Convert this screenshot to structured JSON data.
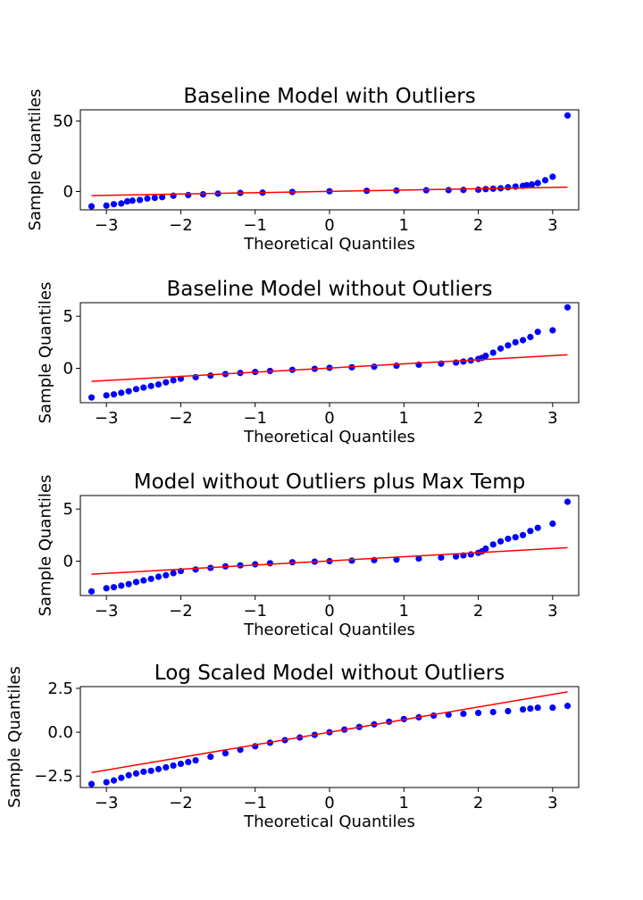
{
  "figure": {
    "xlabel": "Theoretical Quantiles",
    "ylabel": "Sample Quantiles"
  },
  "chart_data": [
    {
      "type": "scatter",
      "title": "Baseline Model with Outliers",
      "xlabel": "Theoretical Quantiles",
      "ylabel": "Sample Quantiles",
      "xlim": [
        -3.35,
        3.35
      ],
      "ylim": [
        -13,
        58
      ],
      "xticks": [
        -3,
        -2,
        -1,
        0,
        1,
        2,
        3
      ],
      "xtick_labels": [
        "−3",
        "−2",
        "−1",
        "0",
        "1",
        "2",
        "3"
      ],
      "yticks": [
        0,
        50
      ],
      "ytick_labels": [
        "0",
        "50"
      ],
      "grid": false,
      "marker_color": "#0000ff",
      "line_color": "#ff0000",
      "ref_line": {
        "x": [
          -3.2,
          3.2
        ],
        "y": [
          -2.9,
          3.1
        ]
      },
      "points": {
        "x": [
          -3.2,
          -3.0,
          -2.9,
          -2.8,
          -2.72,
          -2.65,
          -2.55,
          -2.45,
          -2.35,
          -2.25,
          -2.1,
          -1.9,
          -1.7,
          -1.5,
          -1.2,
          -0.9,
          -0.5,
          0,
          0.5,
          0.9,
          1.3,
          1.6,
          1.8,
          2.0,
          2.1,
          2.2,
          2.3,
          2.4,
          2.5,
          2.6,
          2.65,
          2.72,
          2.8,
          2.9,
          3.0,
          3.2
        ],
        "y": [
          -10.5,
          -10,
          -9,
          -8.5,
          -7,
          -6.5,
          -6,
          -5,
          -4.5,
          -4,
          -3,
          -2.5,
          -2,
          -1.5,
          -1,
          -0.8,
          -0.3,
          0.2,
          0.5,
          0.7,
          0.9,
          1.0,
          1.1,
          1.3,
          1.7,
          2,
          2.3,
          3,
          3.5,
          4,
          4.5,
          5,
          6,
          8,
          10.5,
          54
        ]
      }
    },
    {
      "type": "scatter",
      "title": "Baseline Model without Outliers",
      "xlabel": "Theoretical Quantiles",
      "ylabel": "Sample Quantiles",
      "xlim": [
        -3.35,
        3.35
      ],
      "ylim": [
        -3.3,
        6.3
      ],
      "xticks": [
        -3,
        -2,
        -1,
        0,
        1,
        2,
        3
      ],
      "xtick_labels": [
        "−3",
        "−2",
        "−1",
        "0",
        "1",
        "2",
        "3"
      ],
      "yticks": [
        0,
        5
      ],
      "ytick_labels": [
        "0",
        "5"
      ],
      "grid": false,
      "marker_color": "#0000ff",
      "line_color": "#ff0000",
      "ref_line": {
        "x": [
          -3.2,
          3.2
        ],
        "y": [
          -1.25,
          1.3
        ]
      },
      "points": {
        "x": [
          -3.2,
          -3.0,
          -2.9,
          -2.8,
          -2.7,
          -2.6,
          -2.5,
          -2.4,
          -2.3,
          -2.2,
          -2.1,
          -2.0,
          -1.8,
          -1.6,
          -1.4,
          -1.2,
          -1.0,
          -0.8,
          -0.5,
          -0.2,
          0,
          0.3,
          0.6,
          0.9,
          1.2,
          1.5,
          1.7,
          1.8,
          1.9,
          2.0,
          2.05,
          2.1,
          2.2,
          2.3,
          2.4,
          2.5,
          2.6,
          2.7,
          2.8,
          3.0,
          3.2
        ],
        "y": [
          -2.8,
          -2.6,
          -2.5,
          -2.35,
          -2.2,
          -2.0,
          -1.85,
          -1.7,
          -1.55,
          -1.35,
          -1.15,
          -1.0,
          -0.85,
          -0.7,
          -0.55,
          -0.45,
          -0.35,
          -0.25,
          -0.15,
          -0.05,
          0.05,
          0.1,
          0.15,
          0.25,
          0.35,
          0.45,
          0.55,
          0.65,
          0.75,
          0.9,
          1.0,
          1.2,
          1.5,
          1.9,
          2.2,
          2.5,
          2.7,
          3.0,
          3.5,
          3.65,
          5.85
        ]
      }
    },
    {
      "type": "scatter",
      "title": "Model without Outliers plus Max Temp",
      "xlabel": "Theoretical Quantiles",
      "ylabel": "Sample Quantiles",
      "xlim": [
        -3.35,
        3.35
      ],
      "ylim": [
        -3.3,
        6.3
      ],
      "xticks": [
        -3,
        -2,
        -1,
        0,
        1,
        2,
        3
      ],
      "xtick_labels": [
        "−3",
        "−2",
        "−1",
        "0",
        "1",
        "2",
        "3"
      ],
      "yticks": [
        0,
        5
      ],
      "ytick_labels": [
        "0",
        "5"
      ],
      "grid": false,
      "marker_color": "#0000ff",
      "line_color": "#ff0000",
      "ref_line": {
        "x": [
          -3.2,
          3.2
        ],
        "y": [
          -1.25,
          1.3
        ]
      },
      "points": {
        "x": [
          -3.2,
          -3.0,
          -2.9,
          -2.8,
          -2.7,
          -2.6,
          -2.5,
          -2.4,
          -2.3,
          -2.2,
          -2.1,
          -2.0,
          -1.8,
          -1.6,
          -1.4,
          -1.2,
          -1.0,
          -0.8,
          -0.5,
          -0.2,
          0,
          0.3,
          0.6,
          0.9,
          1.2,
          1.5,
          1.7,
          1.8,
          1.9,
          2.0,
          2.05,
          2.1,
          2.2,
          2.3,
          2.4,
          2.5,
          2.6,
          2.7,
          2.8,
          3.0,
          3.2
        ],
        "y": [
          -2.9,
          -2.6,
          -2.5,
          -2.35,
          -2.2,
          -2.0,
          -1.85,
          -1.7,
          -1.5,
          -1.35,
          -1.15,
          -0.95,
          -0.8,
          -0.65,
          -0.5,
          -0.4,
          -0.3,
          -0.2,
          -0.1,
          -0.05,
          0.0,
          0.05,
          0.1,
          0.15,
          0.25,
          0.35,
          0.45,
          0.55,
          0.65,
          0.8,
          0.95,
          1.2,
          1.6,
          1.9,
          2.15,
          2.3,
          2.5,
          2.9,
          3.2,
          3.6,
          5.7
        ]
      }
    },
    {
      "type": "scatter",
      "title": "Log Scaled Model without Outliers",
      "xlabel": "Theoretical Quantiles",
      "ylabel": "Sample Quantiles",
      "xlim": [
        -3.35,
        3.35
      ],
      "ylim": [
        -3.15,
        2.6
      ],
      "xticks": [
        -3,
        -2,
        -1,
        0,
        1,
        2,
        3
      ],
      "xtick_labels": [
        "−3",
        "−2",
        "−1",
        "0",
        "1",
        "2",
        "3"
      ],
      "yticks": [
        -2.5,
        0.0,
        2.5
      ],
      "ytick_labels": [
        "−2.5",
        "0.0",
        "2.5"
      ],
      "grid": false,
      "marker_color": "#0000ff",
      "line_color": "#ff0000",
      "ref_line": {
        "x": [
          -3.2,
          3.2
        ],
        "y": [
          -2.3,
          2.3
        ]
      },
      "points": {
        "x": [
          -3.2,
          -3.0,
          -2.9,
          -2.8,
          -2.7,
          -2.6,
          -2.5,
          -2.4,
          -2.3,
          -2.2,
          -2.1,
          -2.0,
          -1.9,
          -1.8,
          -1.6,
          -1.4,
          -1.2,
          -1.0,
          -0.8,
          -0.6,
          -0.4,
          -0.2,
          0,
          0.2,
          0.4,
          0.6,
          0.8,
          1.0,
          1.2,
          1.4,
          1.6,
          1.8,
          2.0,
          2.2,
          2.4,
          2.6,
          2.7,
          2.8,
          3.0,
          3.2
        ],
        "y": [
          -2.95,
          -2.85,
          -2.75,
          -2.6,
          -2.45,
          -2.35,
          -2.25,
          -2.2,
          -2.1,
          -2.0,
          -1.9,
          -1.8,
          -1.7,
          -1.6,
          -1.4,
          -1.2,
          -1.0,
          -0.8,
          -0.6,
          -0.45,
          -0.3,
          -0.15,
          0.0,
          0.15,
          0.3,
          0.45,
          0.6,
          0.75,
          0.85,
          0.95,
          1.0,
          1.05,
          1.1,
          1.15,
          1.2,
          1.3,
          1.35,
          1.4,
          1.4,
          1.5
        ]
      }
    }
  ]
}
